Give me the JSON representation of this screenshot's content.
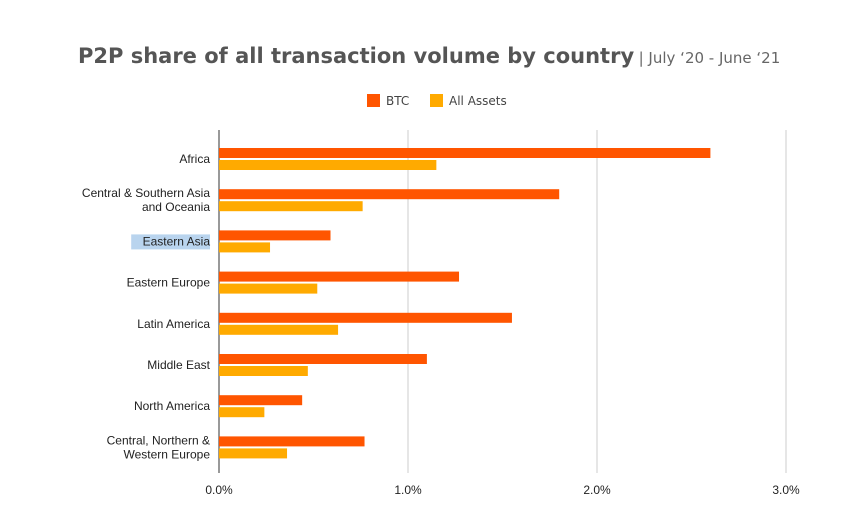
{
  "header": {
    "title": "P2P share of all transaction volume by country",
    "subtitle": "| July ‘20 - June ‘21"
  },
  "colors": {
    "btc": "#FF5500",
    "all_assets": "#FFAA00",
    "grid": "#cccccc",
    "highlight": "#b9d4ee"
  },
  "chart_data": {
    "type": "bar",
    "orientation": "horizontal",
    "title": "P2P share of all transaction volume by country",
    "subtitle": "| July ‘20 - June ‘21",
    "categories": [
      [
        "Africa"
      ],
      [
        "Central & Southern Asia",
        "and Oceania"
      ],
      [
        "Eastern Asia"
      ],
      [
        "Eastern Europe"
      ],
      [
        "Latin America"
      ],
      [
        "Middle East"
      ],
      [
        "North America"
      ],
      [
        "Central, Northern &",
        "Western Europe"
      ]
    ],
    "series": [
      {
        "name": "BTC",
        "color": "#FF5500",
        "values": [
          2.6,
          1.8,
          0.59,
          1.27,
          1.55,
          1.1,
          0.44,
          0.77
        ]
      },
      {
        "name": "All Assets",
        "color": "#FFAA00",
        "values": [
          1.15,
          0.76,
          0.27,
          0.52,
          0.63,
          0.47,
          0.24,
          0.36
        ]
      }
    ],
    "xlim": [
      0,
      3
    ],
    "xticks": [
      0,
      1,
      2,
      3
    ],
    "xtick_labels": [
      "0.0%",
      "1.0%",
      "2.0%",
      "3.0%"
    ],
    "legend_position": "top",
    "grid": true,
    "highlighted_category": "Eastern Asia"
  }
}
